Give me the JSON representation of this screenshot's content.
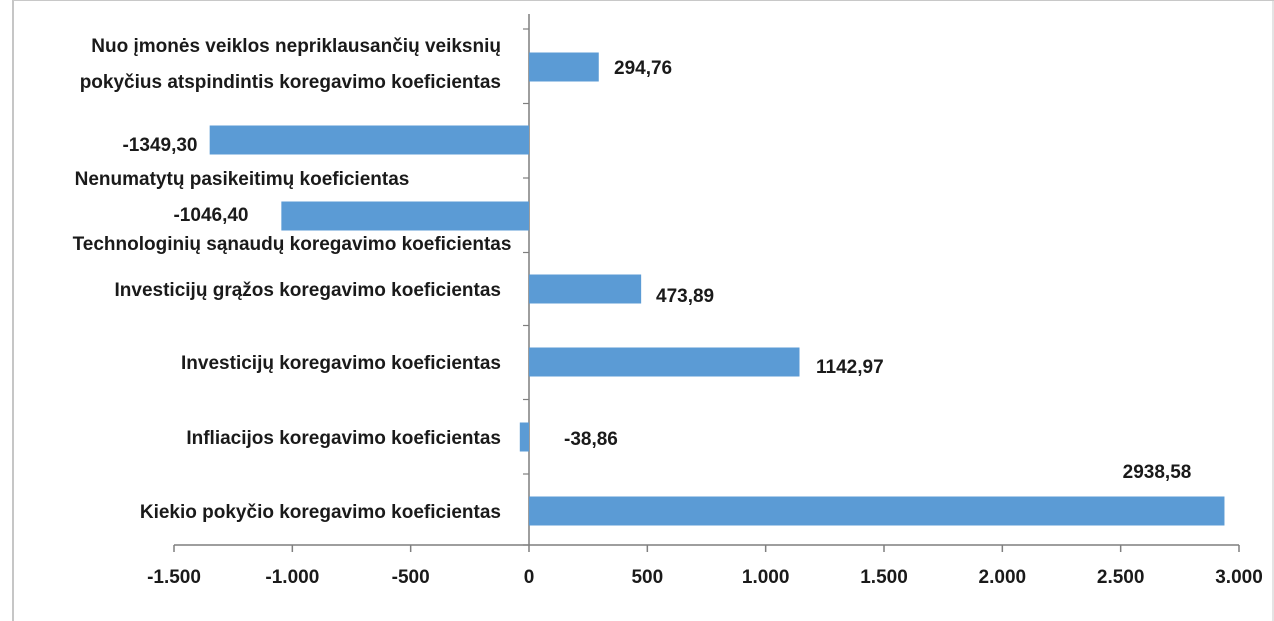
{
  "chart_data": {
    "type": "bar",
    "orientation": "horizontal",
    "categories": [
      [
        "Nuo įmonės veiklos nepriklausančių veiksnių",
        "pokyčius atspindintis koregavimo koeficientas"
      ],
      [
        "Nenumatytų pasikeitimų koeficientas"
      ],
      [
        "Technologinių sąnaudų koregavimo koeficientas"
      ],
      [
        "Investicijų grąžos koregavimo koeficientas"
      ],
      [
        "Investicijų koregavimo koeficientas"
      ],
      [
        "Infliacijos koregavimo koeficientas"
      ],
      [
        "Kiekio pokyčio koregavimo koeficientas"
      ]
    ],
    "values": [
      294.76,
      -1349.3,
      -1046.4,
      473.89,
      1142.97,
      -38.86,
      2938.58
    ],
    "data_labels": [
      "294,76",
      "-1349,30",
      "-1046,40",
      "473,89",
      "1142,97",
      "-38,86",
      "2938,58"
    ],
    "xlim": [
      -1500,
      3000
    ],
    "x_ticks": [
      -1500,
      -1000,
      -500,
      0,
      500,
      1000,
      1500,
      2000,
      2500,
      3000
    ],
    "x_tick_labels": [
      "-1.500",
      "-1.000",
      "-500",
      "0",
      "500",
      "1.000",
      "1.500",
      "2.000",
      "2.500",
      "3.000"
    ],
    "title": "",
    "xlabel": "",
    "ylabel": "",
    "grid": false,
    "legend": "none",
    "bar_color": "#5b9bd5",
    "axis_color": "#7f7f7f",
    "text_color": "#1a1a1a"
  }
}
